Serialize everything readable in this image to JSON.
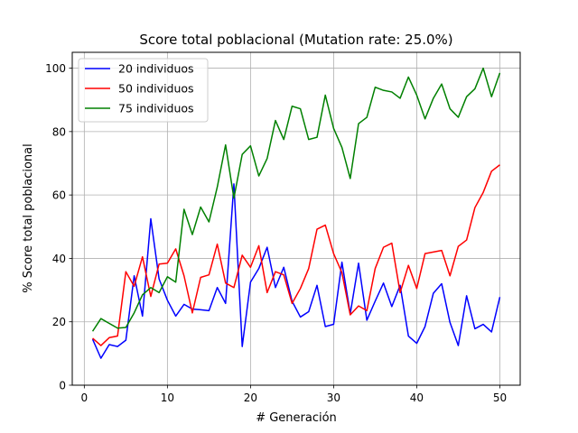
{
  "chart_data": {
    "type": "line",
    "title": "Score total poblacional (Mutation rate: 25.0%)",
    "xlabel": "# Generación",
    "ylabel": "% Score total poblacional",
    "xlim": [
      -1.45,
      52.45
    ],
    "ylim": [
      0,
      105
    ],
    "xticks": [
      0,
      10,
      20,
      30,
      40,
      50
    ],
    "yticks": [
      0,
      20,
      40,
      60,
      80,
      100
    ],
    "grid": true,
    "legend_position": "top-left",
    "x": [
      1,
      2,
      3,
      4,
      5,
      6,
      7,
      8,
      9,
      10,
      11,
      12,
      13,
      14,
      15,
      16,
      17,
      18,
      19,
      20,
      21,
      22,
      23,
      24,
      25,
      26,
      27,
      28,
      29,
      30,
      31,
      32,
      33,
      34,
      35,
      36,
      37,
      38,
      39,
      40,
      41,
      42,
      43,
      44,
      45,
      46,
      47,
      48,
      49,
      50
    ],
    "series": [
      {
        "name": "20 individuos",
        "color": "#0000ff",
        "values": [
          14.5,
          8.5,
          12.8,
          12.2,
          14.2,
          34.5,
          21.8,
          52.5,
          33.5,
          26.8,
          21.8,
          25.5,
          24.0,
          23.8,
          23.5,
          30.8,
          25.8,
          63.5,
          12.2,
          32.5,
          36.8,
          43.5,
          30.8,
          37.2,
          26.5,
          21.5,
          23.2,
          31.5,
          18.5,
          19.2,
          38.8,
          22.5,
          38.5,
          20.5,
          26.5,
          32.2,
          24.8,
          31.5,
          15.5,
          13.2,
          18.5,
          29.0,
          32.0,
          19.8,
          12.5,
          28.2,
          17.8,
          19.2,
          16.8,
          27.8
        ]
      },
      {
        "name": "50 individuos",
        "color": "#ff0000",
        "values": [
          14.8,
          12.5,
          15.0,
          15.5,
          35.8,
          31.2,
          40.5,
          28.0,
          38.2,
          38.5,
          43.0,
          34.5,
          22.8,
          34.0,
          34.8,
          44.5,
          32.2,
          30.8,
          41.0,
          37.2,
          44.0,
          29.2,
          35.8,
          34.8,
          25.8,
          30.5,
          36.8,
          49.2,
          50.5,
          41.5,
          35.5,
          22.2,
          25.0,
          23.5,
          36.8,
          43.5,
          44.8,
          29.2,
          37.8,
          30.5,
          41.5,
          42.0,
          42.5,
          34.5,
          43.8,
          45.8,
          56.0,
          60.8,
          67.5,
          69.5
        ]
      },
      {
        "name": "75 individuos",
        "color": "#008000",
        "values": [
          17.0,
          21.0,
          19.5,
          18.0,
          18.2,
          22.8,
          28.5,
          30.8,
          29.2,
          34.2,
          32.5,
          55.5,
          47.5,
          56.2,
          51.5,
          62.5,
          75.8,
          59.0,
          72.8,
          75.5,
          66.0,
          71.5,
          83.5,
          77.5,
          88.0,
          87.2,
          77.5,
          78.2,
          91.5,
          81.0,
          75.0,
          65.2,
          82.5,
          84.5,
          94.0,
          93.0,
          92.5,
          90.5,
          97.2,
          91.5,
          84.0,
          90.5,
          95.0,
          87.2,
          84.5,
          91.0,
          93.5,
          100.0,
          91.0,
          98.5
        ]
      }
    ]
  }
}
